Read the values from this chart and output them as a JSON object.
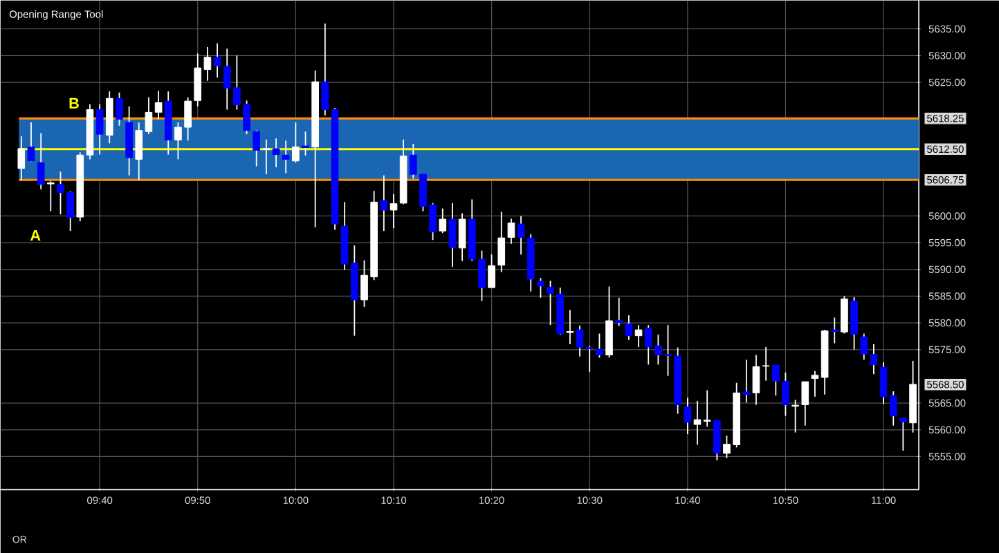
{
  "chart_data": {
    "type": "candlestick",
    "title": "Opening Range Tool",
    "x": [
      9.5333,
      9.55,
      9.5667,
      9.5833,
      9.6,
      9.6167,
      9.6333,
      9.65,
      9.6667,
      9.6833,
      9.7,
      9.7167,
      9.7333,
      9.75,
      9.7667,
      9.7833,
      9.8,
      9.8167,
      9.8333,
      9.85,
      9.8667,
      9.8833,
      9.9,
      9.9167,
      9.9333,
      9.95,
      9.9667,
      9.9833,
      10.0,
      10.0167,
      10.0333,
      10.05,
      10.0667,
      10.0833,
      10.1,
      10.1167,
      10.1333,
      10.15,
      10.1667,
      10.1833,
      10.2,
      10.2167,
      10.2333,
      10.25,
      10.2667,
      10.2833,
      10.3,
      10.3167,
      10.3333,
      10.35,
      10.3667,
      10.3833,
      10.4,
      10.4167,
      10.4333,
      10.45,
      10.4667,
      10.4833,
      10.5,
      10.5167,
      10.5333,
      10.55,
      10.5667,
      10.5833,
      10.6,
      10.6167,
      10.6333,
      10.65,
      10.6667,
      10.6833,
      10.7,
      10.7167,
      10.7333,
      10.75,
      10.7667,
      10.7833,
      10.8,
      10.8167,
      10.8333,
      10.85,
      10.8667,
      10.8833,
      10.9,
      10.9167,
      10.9333,
      10.95,
      10.9667,
      10.9833,
      11.0,
      11.0167,
      11.0333,
      11.05
    ],
    "ohlc": [
      [
        5608.9,
        5614.9,
        5606.6,
        5612.6
      ],
      [
        5612.9,
        5617.5,
        5610.2,
        5610.3
      ],
      [
        5610.0,
        5615.5,
        5605.0,
        5605.9
      ],
      [
        5606.0,
        5606.5,
        5600.9,
        5606.2
      ],
      [
        5605.9,
        5608.3,
        5600.3,
        5604.4
      ],
      [
        5604.4,
        5604.6,
        5597.2,
        5599.7
      ],
      [
        5599.8,
        5611.9,
        5599.0,
        5611.4
      ],
      [
        5611.4,
        5620.9,
        5610.6,
        5619.9
      ],
      [
        5619.9,
        5620.9,
        5611.5,
        5615.3
      ],
      [
        5615.1,
        5623.3,
        5613.6,
        5622.0
      ],
      [
        5622.0,
        5623.1,
        5616.9,
        5618.1
      ],
      [
        5617.5,
        5620.5,
        5607.6,
        5610.9
      ],
      [
        5610.6,
        5617.5,
        5606.7,
        5616.0
      ],
      [
        5615.8,
        5622.2,
        5615.3,
        5619.4
      ],
      [
        5619.4,
        5623.4,
        5618.1,
        5621.2
      ],
      [
        5621.5,
        5623.3,
        5611.5,
        5614.2
      ],
      [
        5614.2,
        5617.5,
        5610.6,
        5616.6
      ],
      [
        5616.6,
        5622.2,
        5614.1,
        5621.5
      ],
      [
        5621.6,
        5630.4,
        5620.5,
        5627.7
      ],
      [
        5627.4,
        5631.6,
        5625.3,
        5629.7
      ],
      [
        5629.7,
        5632.3,
        5625.9,
        5628.1
      ],
      [
        5628.0,
        5631.3,
        5619.9,
        5623.9
      ],
      [
        5624.0,
        5630.0,
        5619.9,
        5620.8
      ],
      [
        5620.9,
        5621.6,
        5615.3,
        5616.0
      ],
      [
        5615.8,
        5616.0,
        5609.3,
        5612.3
      ],
      [
        5612.4,
        5614.3,
        5607.8,
        5612.6
      ],
      [
        5612.6,
        5614.5,
        5609.1,
        5611.5
      ],
      [
        5611.4,
        5614.1,
        5608.0,
        5610.6
      ],
      [
        5610.3,
        5617.5,
        5610.0,
        5612.9
      ],
      [
        5613.1,
        5615.8,
        5611.3,
        5612.8
      ],
      [
        5612.9,
        5627.2,
        5597.9,
        5625.1
      ],
      [
        5625.1,
        5636.0,
        5618.8,
        5619.9
      ],
      [
        5619.9,
        5620.2,
        5597.4,
        5598.5
      ],
      [
        5598.1,
        5602.6,
        5589.9,
        5591.0
      ],
      [
        5591.2,
        5594.5,
        5577.6,
        5584.3
      ],
      [
        5584.3,
        5591.7,
        5583.0,
        5588.9
      ],
      [
        5588.6,
        5604.7,
        5588.0,
        5602.6
      ],
      [
        5602.9,
        5607.6,
        5597.2,
        5601.1
      ],
      [
        5601.1,
        5604.1,
        5597.7,
        5602.3
      ],
      [
        5602.4,
        5614.3,
        5602.2,
        5611.2
      ],
      [
        5611.4,
        5613.5,
        5607.0,
        5607.8
      ],
      [
        5607.8,
        5607.8,
        5600.9,
        5601.8
      ],
      [
        5602.1,
        5602.4,
        5595.5,
        5597.0
      ],
      [
        5597.2,
        5601.4,
        5596.8,
        5599.4
      ],
      [
        5599.4,
        5602.4,
        5590.5,
        5594.1
      ],
      [
        5594.0,
        5600.5,
        5591.6,
        5599.4
      ],
      [
        5599.4,
        5603.1,
        5591.6,
        5591.9
      ],
      [
        5591.9,
        5593.5,
        5584.1,
        5586.6
      ],
      [
        5586.6,
        5592.8,
        5586.6,
        5590.7
      ],
      [
        5590.8,
        5600.8,
        5589.5,
        5595.9
      ],
      [
        5596.0,
        5599.5,
        5594.8,
        5598.7
      ],
      [
        5598.5,
        5600.0,
        5592.8,
        5596.0
      ],
      [
        5595.9,
        5596.6,
        5585.9,
        5588.2
      ],
      [
        5587.8,
        5588.4,
        5584.7,
        5586.9
      ],
      [
        5586.7,
        5587.9,
        5579.6,
        5585.5
      ],
      [
        5585.4,
        5586.6,
        5577.8,
        5578.0
      ],
      [
        5578.2,
        5582.4,
        5576.0,
        5578.4
      ],
      [
        5578.7,
        5579.5,
        5573.7,
        5575.4
      ],
      [
        5575.4,
        5575.7,
        5570.8,
        5575.2
      ],
      [
        5575.1,
        5578.0,
        5573.5,
        5574.0
      ],
      [
        5574.0,
        5586.8,
        5573.5,
        5580.4
      ],
      [
        5580.5,
        5584.7,
        5579.4,
        5580.1
      ],
      [
        5579.8,
        5581.4,
        5576.8,
        5577.6
      ],
      [
        5577.6,
        5579.6,
        5575.5,
        5578.7
      ],
      [
        5579.0,
        5579.6,
        5572.2,
        5575.5
      ],
      [
        5575.7,
        5577.8,
        5572.2,
        5574.0
      ],
      [
        5574.1,
        5579.6,
        5570.1,
        5573.9
      ],
      [
        5573.8,
        5575.4,
        5563.0,
        5564.7
      ],
      [
        5564.3,
        5566.0,
        5559.2,
        5561.4
      ],
      [
        5561.0,
        5565.4,
        5557.2,
        5561.9
      ],
      [
        5561.6,
        5567.4,
        5560.6,
        5561.8
      ],
      [
        5561.7,
        5561.7,
        5554.3,
        5555.6
      ],
      [
        5555.6,
        5558.9,
        5554.7,
        5557.3
      ],
      [
        5557.2,
        5568.8,
        5556.7,
        5566.9
      ],
      [
        5567.1,
        5573.1,
        5565.1,
        5566.6
      ],
      [
        5566.9,
        5574.0,
        5564.7,
        5571.8
      ],
      [
        5571.9,
        5575.5,
        5569.2,
        5572.0
      ],
      [
        5572.1,
        5572.1,
        5566.4,
        5569.1
      ],
      [
        5569.1,
        5570.7,
        5562.6,
        5564.7
      ],
      [
        5564.4,
        5565.6,
        5559.5,
        5564.6
      ],
      [
        5564.7,
        5569.0,
        5560.8,
        5569.0
      ],
      [
        5569.6,
        5571.0,
        5566.2,
        5570.2
      ],
      [
        5569.8,
        5578.7,
        5566.6,
        5578.5
      ],
      [
        5578.7,
        5581.0,
        5576.2,
        5578.4
      ],
      [
        5578.3,
        5585.0,
        5578.0,
        5584.5
      ],
      [
        5584.1,
        5584.8,
        5575.0,
        5577.9
      ],
      [
        5577.4,
        5578.0,
        5573.1,
        5574.2
      ],
      [
        5574.1,
        5576.0,
        5570.4,
        5572.2
      ],
      [
        5571.7,
        5572.6,
        5564.9,
        5566.2
      ],
      [
        5566.4,
        5567.2,
        5560.8,
        5562.6
      ],
      [
        5562.2,
        5562.2,
        5556.1,
        5561.5
      ],
      [
        5561.3,
        5572.9,
        5559.5,
        5568.5
      ]
    ],
    "colors": [
      "#ffffff",
      "#0000ff",
      "#0000ff",
      "#ffffff",
      "#0000ff",
      "#0000ff",
      "#ffffff",
      "#ffffff",
      "#0000ff",
      "#ffffff",
      "#0000ff",
      "#0000ff",
      "#ffffff",
      "#ffffff",
      "#ffffff",
      "#0000ff",
      "#ffffff",
      "#ffffff",
      "#ffffff",
      "#ffffff",
      "#0000ff",
      "#0000ff",
      "#0000ff",
      "#0000ff",
      "#0000ff",
      "#ffffff",
      "#0000ff",
      "#0000ff",
      "#ffffff",
      "#0000ff",
      "#ffffff",
      "#0000ff",
      "#0000ff",
      "#0000ff",
      "#0000ff",
      "#ffffff",
      "#ffffff",
      "#0000ff",
      "#ffffff",
      "#ffffff",
      "#0000ff",
      "#0000ff",
      "#0000ff",
      "#ffffff",
      "#0000ff",
      "#ffffff",
      "#0000ff",
      "#0000ff",
      "#ffffff",
      "#ffffff",
      "#ffffff",
      "#0000ff",
      "#0000ff",
      "#0000ff",
      "#0000ff",
      "#0000ff",
      "#ffffff",
      "#0000ff",
      "#0000ff",
      "#0000ff",
      "#ffffff",
      "#0000ff",
      "#0000ff",
      "#ffffff",
      "#0000ff",
      "#0000ff",
      "#0000ff",
      "#0000ff",
      "#0000ff",
      "#ffffff",
      "#ffffff",
      "#0000ff",
      "#ffffff",
      "#ffffff",
      "#0000ff",
      "#ffffff",
      "#ffffff",
      "#0000ff",
      "#0000ff",
      "#ffffff",
      "#ffffff",
      "#ffffff",
      "#ffffff",
      "#0000ff",
      "#ffffff",
      "#0000ff",
      "#0000ff",
      "#0000ff",
      "#0000ff",
      "#0000ff",
      "#0000ff",
      "#ffffff"
    ],
    "xlim": [
      9.498,
      11.06
    ],
    "ylim": [
      5548.8,
      5640.3
    ],
    "xticks": [
      {
        "value": 9.6667,
        "label": "09:40"
      },
      {
        "value": 9.8333,
        "label": "09:50"
      },
      {
        "value": 10.0,
        "label": "10:00"
      },
      {
        "value": 10.1667,
        "label": "10:10"
      },
      {
        "value": 10.3333,
        "label": "10:20"
      },
      {
        "value": 10.5,
        "label": "10:30"
      },
      {
        "value": 10.6667,
        "label": "10:40"
      },
      {
        "value": 10.8333,
        "label": "10:50"
      },
      {
        "value": 11.0,
        "label": "11:00"
      }
    ],
    "yticks": [
      {
        "value": 5555,
        "label": "5555.00"
      },
      {
        "value": 5560,
        "label": "5560.00"
      },
      {
        "value": 5565,
        "label": "5565.00"
      },
      {
        "value": 5575,
        "label": "5575.00"
      },
      {
        "value": 5580,
        "label": "5580.00"
      },
      {
        "value": 5585,
        "label": "5585.00"
      },
      {
        "value": 5590,
        "label": "5590.00"
      },
      {
        "value": 5595,
        "label": "5595.00"
      },
      {
        "value": 5600,
        "label": "5600.00"
      },
      {
        "value": 5625,
        "label": "5625.00"
      },
      {
        "value": 5630,
        "label": "5630.00"
      },
      {
        "value": 5635,
        "label": "5635.00"
      }
    ],
    "grid": true,
    "bands": [
      {
        "axis": "y",
        "from": 5606.75,
        "to": 5618.25,
        "color": "#1a66b3"
      }
    ],
    "ref_lines": [
      {
        "axis": "y",
        "value": 5618.25,
        "label": "5618.25",
        "color": "#ff8c00",
        "line_style": "solid"
      },
      {
        "axis": "y",
        "value": 5612.5,
        "label": "5612.50",
        "color": "#ffff00",
        "line_style": "solid"
      },
      {
        "axis": "y",
        "value": 5606.75,
        "label": "5606.75",
        "color": "#ff8c00",
        "line_style": "solid"
      }
    ],
    "annotations": [
      "A",
      "B",
      "5568.50",
      "OR"
    ]
  }
}
